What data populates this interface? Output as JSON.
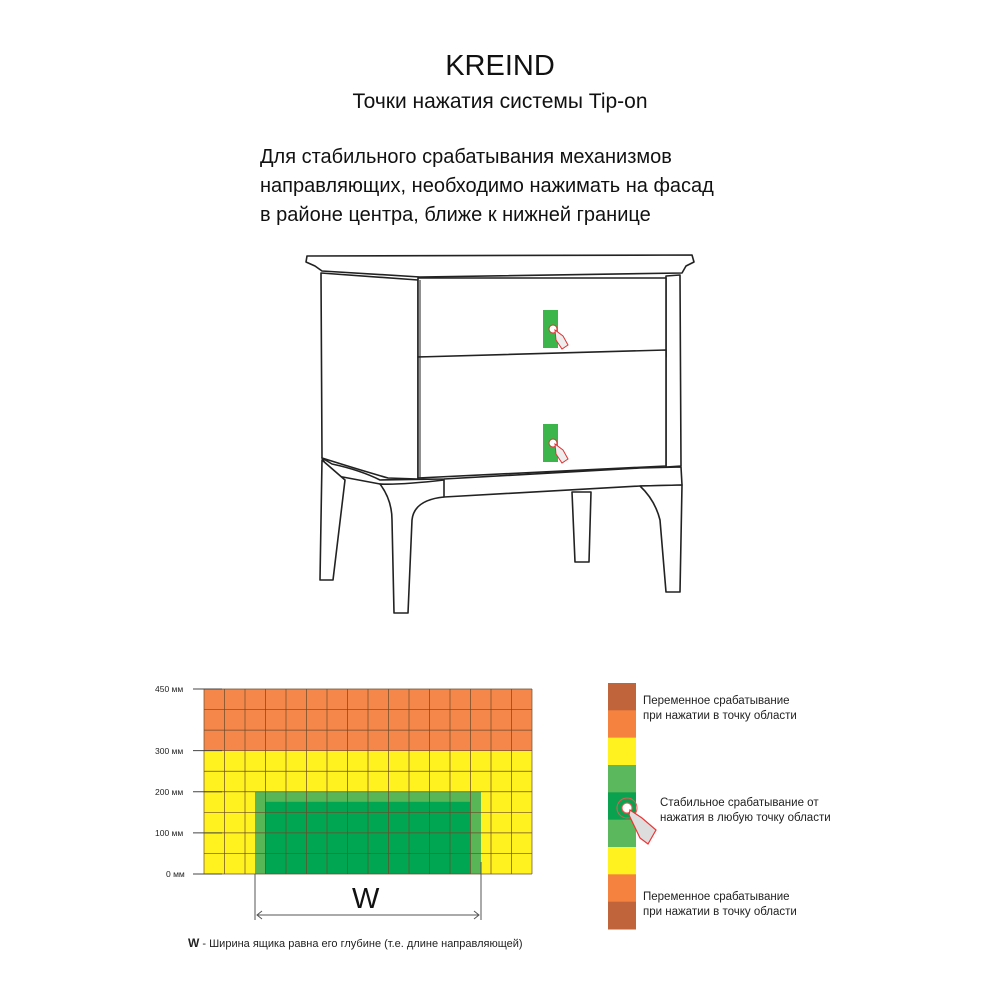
{
  "header": {
    "brand": "KREIND",
    "subtitle": "Точки нажатия системы Tip-on"
  },
  "description": [
    "Для стабильного срабатывания механизмов",
    "направляющих, необходимо нажимать на фасад",
    "в районе центра, ближе к нижней границе"
  ],
  "zone_diagram": {
    "ticks": [
      "450 мм",
      "300 мм",
      "200 мм",
      "100 мм",
      "0 мм"
    ],
    "tick_values_mm": [
      450,
      300,
      200,
      100,
      0
    ],
    "columns": 16,
    "zones": [
      {
        "from_mm": 300,
        "to_mm": 450,
        "color": "#f5874a"
      },
      {
        "from_mm": 0,
        "to_mm": 300,
        "color": "#fff21f"
      }
    ],
    "stable_zone": {
      "outer_color": "#58b657",
      "inner_color": "#00a651",
      "top_mm": 200
    },
    "width_label": "W",
    "note_key": "W",
    "note_text": " - Ширина ящика равна его глубине (т.е. длине направляющей)"
  },
  "legend": {
    "colors": [
      "#c0643c",
      "#f5823e",
      "#fff21f",
      "#5cb85c",
      "#0aa24f",
      "#5cb85c",
      "#fff21f",
      "#f5823e",
      "#c0643c"
    ],
    "items": [
      {
        "line1": "Переменное срабатывание",
        "line2": "при нажатии в точку области"
      },
      {
        "line1": "Стабильное срабатывание от",
        "line2": "нажатия в любую точку области"
      },
      {
        "line1": "Переменное срабатывание",
        "line2": "при нажатии в точку области"
      }
    ]
  }
}
